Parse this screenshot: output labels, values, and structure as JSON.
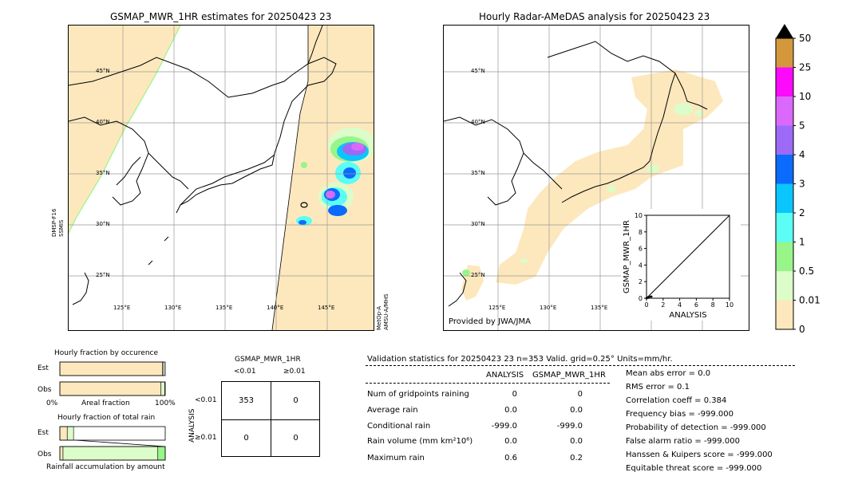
{
  "left_map": {
    "title": "GSMAP_MWR_1HR estimates for 20250423 23",
    "sat_left": "DMSP-F16\nSSMIS",
    "sat_left_l1": "DMSP-F16",
    "sat_left_l2": "SSMIS",
    "sat_right_l1": "MetOp-A",
    "sat_right_l2": "AMSU-A/MHS",
    "lat_labels": [
      "45°N",
      "40°N",
      "35°N",
      "30°N",
      "25°N"
    ],
    "lon_labels": [
      "125°E",
      "130°E",
      "135°E",
      "140°E",
      "145°E"
    ]
  },
  "right_map": {
    "title": "Hourly Radar-AMeDAS analysis for 20250423 23",
    "credit": "Provided by JWA/JMA",
    "lat_labels": [
      "45°N",
      "40°N",
      "35°N",
      "30°N",
      "25°N"
    ],
    "lon_labels": [
      "125°E",
      "130°E",
      "135°E"
    ]
  },
  "colorbar": {
    "levels": [
      "0",
      "0.01",
      "0.5",
      "1",
      "2",
      "3",
      "4",
      "5",
      "10",
      "25",
      "50"
    ],
    "colors": [
      "#fde8bd",
      "#dcfcc9",
      "#97f58a",
      "#5bfdf5",
      "#0ac6fc",
      "#0a6bfc",
      "#9c6af6",
      "#da69fb",
      "#fb0afb",
      "#d3983c"
    ]
  },
  "chart_data": [
    {
      "type": "scatter",
      "title": "",
      "xlabel": "ANALYSIS",
      "ylabel": "GSMAP_MWR_1HR",
      "xlim": [
        0,
        10
      ],
      "ylim": [
        0,
        10
      ],
      "xticks": [
        "0",
        "2",
        "4",
        "6",
        "8",
        "10"
      ],
      "yticks": [
        "0",
        "2",
        "4",
        "6",
        "8",
        "10"
      ],
      "points": [
        [
          0.0,
          0.0
        ],
        [
          0.1,
          0.1
        ],
        [
          0.2,
          0.05
        ],
        [
          0.3,
          0.15
        ],
        [
          0.5,
          0.2
        ],
        [
          0.6,
          0.2
        ]
      ],
      "diagonal": true
    },
    {
      "type": "bar",
      "title": "Hourly fraction by occurence",
      "categories": [
        "Est",
        "Obs"
      ],
      "xlabel": "Areal fraction",
      "xticks": [
        "0%",
        "100%"
      ],
      "series": [
        {
          "values": [
            0.975,
            0.96
          ],
          "color": "#fde8bd"
        },
        {
          "values": [
            0.01,
            0.035
          ],
          "color": "#dcfcc9"
        }
      ]
    },
    {
      "type": "bar",
      "title": "Hourly fraction of total rain",
      "categories": [
        "Est",
        "Obs"
      ],
      "xlabel": "Rainfall accumulation by amount",
      "series": [
        {
          "values": [
            0.07,
            0.03
          ],
          "color": "#fde8bd"
        },
        {
          "values": [
            0.06,
            0.9
          ],
          "color": "#dcfcc9"
        },
        {
          "values": [
            0.0,
            0.07
          ],
          "color": "#97f58a"
        }
      ]
    }
  ],
  "contingency": {
    "title": "GSMAP_MWR_1HR",
    "col_labels": [
      "<0.01",
      "≥0.01"
    ],
    "row_axis": "ANALYSIS",
    "row_labels": [
      "<0.01",
      "≥0.01"
    ],
    "cells": [
      "353",
      "0",
      "0",
      "0"
    ]
  },
  "validation": {
    "header": "Validation statistics for 20250423 23  n=353 Valid. grid=0.25° Units=mm/hr.",
    "col_analysis": "ANALYSIS",
    "col_gsmap": "GSMAP_MWR_1HR",
    "rows": [
      {
        "label": "Num of gridpoints raining",
        "analysis": "0",
        "gsmap": "0"
      },
      {
        "label": "Average rain",
        "analysis": "0.0",
        "gsmap": "0.0"
      },
      {
        "label": "Conditional rain",
        "analysis": "-999.0",
        "gsmap": "-999.0"
      },
      {
        "label": "Rain volume (mm km²10⁶)",
        "analysis": "0.0",
        "gsmap": "0.0"
      },
      {
        "label": "Maximum rain",
        "analysis": "0.6",
        "gsmap": "0.2"
      }
    ],
    "scores": [
      "Mean abs error =    0.0",
      "RMS error =    0.1",
      "Correlation coeff =  0.384",
      "Frequency bias = -999.000",
      "Probability of detection = -999.000",
      "False alarm ratio = -999.000",
      "Hanssen & Kuipers score = -999.000",
      "Equitable threat score = -999.000"
    ]
  }
}
